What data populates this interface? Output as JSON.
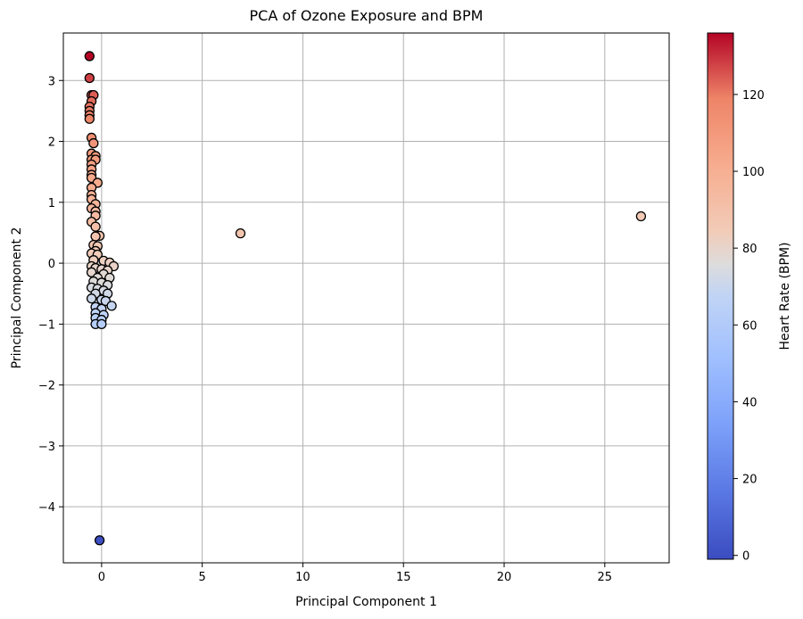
{
  "chart_data": {
    "type": "scatter",
    "title": "PCA of Ozone Exposure and BPM",
    "xlabel": "Principal Component 1",
    "ylabel": "Principal Component 2",
    "xlim": [
      -1.9,
      28.2
    ],
    "ylim": [
      -4.92,
      3.78
    ],
    "xticks": [
      0,
      5,
      10,
      15,
      20,
      25
    ],
    "yticks": [
      -4,
      -3,
      -2,
      -1,
      0,
      1,
      2,
      3
    ],
    "grid": true,
    "colorbar": {
      "label": "Heart Rate (BPM)",
      "colormap": "coolwarm",
      "range": [
        -1,
        136
      ],
      "ticks": [
        0,
        20,
        40,
        60,
        80,
        100,
        120
      ]
    },
    "points": [
      {
        "x": -0.6,
        "y": 3.4,
        "bpm": 136
      },
      {
        "x": -0.6,
        "y": 3.04,
        "bpm": 128
      },
      {
        "x": -0.5,
        "y": 2.76,
        "bpm": 124
      },
      {
        "x": -0.4,
        "y": 2.76,
        "bpm": 124
      },
      {
        "x": -0.5,
        "y": 2.66,
        "bpm": 122
      },
      {
        "x": -0.6,
        "y": 2.57,
        "bpm": 121
      },
      {
        "x": -0.6,
        "y": 2.5,
        "bpm": 120
      },
      {
        "x": -0.6,
        "y": 2.43,
        "bpm": 119
      },
      {
        "x": -0.6,
        "y": 2.37,
        "bpm": 118
      },
      {
        "x": -0.5,
        "y": 2.06,
        "bpm": 114
      },
      {
        "x": -0.4,
        "y": 1.97,
        "bpm": 112
      },
      {
        "x": -0.5,
        "y": 1.8,
        "bpm": 110
      },
      {
        "x": -0.3,
        "y": 1.76,
        "bpm": 110
      },
      {
        "x": -0.5,
        "y": 1.7,
        "bpm": 109
      },
      {
        "x": -0.3,
        "y": 1.7,
        "bpm": 108
      },
      {
        "x": -0.5,
        "y": 1.62,
        "bpm": 107
      },
      {
        "x": -0.5,
        "y": 1.54,
        "bpm": 106
      },
      {
        "x": -0.5,
        "y": 1.45,
        "bpm": 104
      },
      {
        "x": -0.5,
        "y": 1.4,
        "bpm": 103
      },
      {
        "x": -0.2,
        "y": 1.32,
        "bpm": 102
      },
      {
        "x": -0.5,
        "y": 1.24,
        "bpm": 101
      },
      {
        "x": -0.5,
        "y": 1.12,
        "bpm": 99
      },
      {
        "x": -0.5,
        "y": 1.05,
        "bpm": 98
      },
      {
        "x": -0.3,
        "y": 0.97,
        "bpm": 97
      },
      {
        "x": -0.5,
        "y": 0.9,
        "bpm": 96
      },
      {
        "x": -0.3,
        "y": 0.85,
        "bpm": 95
      },
      {
        "x": -0.3,
        "y": 0.78,
        "bpm": 94
      },
      {
        "x": -0.5,
        "y": 0.68,
        "bpm": 92
      },
      {
        "x": -0.3,
        "y": 0.6,
        "bpm": 91
      },
      {
        "x": -0.1,
        "y": 0.45,
        "bpm": 89
      },
      {
        "x": -0.3,
        "y": 0.44,
        "bpm": 89
      },
      {
        "x": -0.4,
        "y": 0.3,
        "bpm": 87
      },
      {
        "x": -0.2,
        "y": 0.28,
        "bpm": 86
      },
      {
        "x": -0.3,
        "y": 0.2,
        "bpm": 85
      },
      {
        "x": -0.5,
        "y": 0.16,
        "bpm": 84
      },
      {
        "x": -0.2,
        "y": 0.14,
        "bpm": 84
      },
      {
        "x": -0.4,
        "y": 0.05,
        "bpm": 83
      },
      {
        "x": 0.1,
        "y": 0.04,
        "bpm": 82
      },
      {
        "x": 0.4,
        "y": 0.01,
        "bpm": 82
      },
      {
        "x": -0.5,
        "y": -0.05,
        "bpm": 81
      },
      {
        "x": 0.6,
        "y": -0.05,
        "bpm": 81
      },
      {
        "x": -0.3,
        "y": -0.08,
        "bpm": 80
      },
      {
        "x": 0.0,
        "y": -0.1,
        "bpm": 80
      },
      {
        "x": 0.3,
        "y": -0.12,
        "bpm": 80
      },
      {
        "x": -0.5,
        "y": -0.15,
        "bpm": 79
      },
      {
        "x": 0.1,
        "y": -0.18,
        "bpm": 78
      },
      {
        "x": -0.2,
        "y": -0.24,
        "bpm": 77
      },
      {
        "x": 0.4,
        "y": -0.24,
        "bpm": 77
      },
      {
        "x": -0.4,
        "y": -0.3,
        "bpm": 76
      },
      {
        "x": 0.0,
        "y": -0.32,
        "bpm": 76
      },
      {
        "x": 0.3,
        "y": -0.36,
        "bpm": 75
      },
      {
        "x": -0.5,
        "y": -0.4,
        "bpm": 74
      },
      {
        "x": -0.2,
        "y": -0.42,
        "bpm": 74
      },
      {
        "x": 0.1,
        "y": -0.45,
        "bpm": 73
      },
      {
        "x": 0.3,
        "y": -0.5,
        "bpm": 72
      },
      {
        "x": -0.3,
        "y": -0.5,
        "bpm": 72
      },
      {
        "x": -0.5,
        "y": -0.58,
        "bpm": 71
      },
      {
        "x": 0.0,
        "y": -0.6,
        "bpm": 70
      },
      {
        "x": 0.2,
        "y": -0.62,
        "bpm": 70
      },
      {
        "x": 0.5,
        "y": -0.7,
        "bpm": 69
      },
      {
        "x": -0.3,
        "y": -0.72,
        "bpm": 68
      },
      {
        "x": 0.0,
        "y": -0.75,
        "bpm": 68
      },
      {
        "x": -0.3,
        "y": -0.82,
        "bpm": 66
      },
      {
        "x": 0.1,
        "y": -0.85,
        "bpm": 66
      },
      {
        "x": -0.3,
        "y": -0.9,
        "bpm": 64
      },
      {
        "x": 0.0,
        "y": -0.93,
        "bpm": 64
      },
      {
        "x": -0.3,
        "y": -1.0,
        "bpm": 62
      },
      {
        "x": 0.0,
        "y": -1.0,
        "bpm": 62
      },
      {
        "x": -0.1,
        "y": -4.55,
        "bpm": 0
      },
      {
        "x": 6.9,
        "y": 0.49,
        "bpm": 88
      },
      {
        "x": 26.8,
        "y": 0.77,
        "bpm": 86
      }
    ]
  }
}
